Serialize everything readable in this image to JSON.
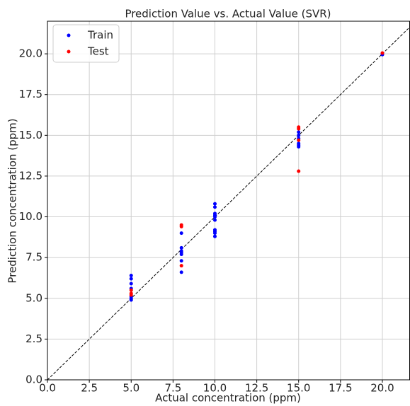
{
  "chart_data": {
    "type": "scatter",
    "title": "Prediction Value vs. Actual Value (SVR)",
    "x_label": "Actual concentration (ppm)",
    "y_label": "Prediction concentration (ppm)",
    "series": [
      {
        "name": "Train",
        "color": "#0000ff",
        "x": [
          5,
          5,
          5,
          5,
          5,
          5,
          5,
          8,
          8,
          8,
          8,
          8,
          8,
          8,
          10,
          10,
          10,
          10,
          10,
          10,
          10,
          10,
          10,
          10,
          15,
          15,
          15,
          15,
          15,
          15,
          20,
          20
        ],
        "values": [
          6.4,
          6.2,
          5.9,
          5.6,
          5.1,
          5.0,
          4.9,
          9.0,
          8.1,
          7.9,
          7.8,
          7.7,
          7.3,
          6.6,
          10.8,
          10.6,
          10.2,
          10.1,
          10.0,
          9.8,
          9.2,
          9.1,
          9.0,
          8.8,
          15.2,
          15.0,
          14.8,
          14.5,
          14.4,
          14.3,
          19.95,
          20.0
        ]
      },
      {
        "name": "Test",
        "color": "#ff0000",
        "x": [
          5,
          5,
          5,
          8,
          8,
          8,
          15,
          15,
          15,
          15,
          20
        ],
        "values": [
          5.5,
          5.3,
          5.2,
          9.5,
          9.4,
          7.0,
          15.5,
          15.4,
          14.7,
          12.8,
          20.05
        ]
      }
    ],
    "xlim": [
      0,
      21.65
    ],
    "ylim": [
      0,
      22
    ],
    "xticks": [
      {
        "value": 0,
        "label": "0.0"
      },
      2.5,
      {
        "value": 5,
        "label": "5.0"
      },
      7.5,
      {
        "value": 10,
        "label": "10.0"
      },
      12.5,
      {
        "value": 15,
        "label": "15.0"
      },
      17.5,
      {
        "value": 20,
        "label": "20.0"
      }
    ],
    "yticks": [
      {
        "value": 0,
        "label": "0.0"
      },
      2.5,
      {
        "value": 5,
        "label": "5.0"
      },
      7.5,
      {
        "value": 10,
        "label": "10.0"
      },
      12.5,
      {
        "value": 15,
        "label": "15.0"
      },
      17.5,
      {
        "value": 20,
        "label": "20.0"
      }
    ],
    "grid": true,
    "legend": "upper left"
  }
}
